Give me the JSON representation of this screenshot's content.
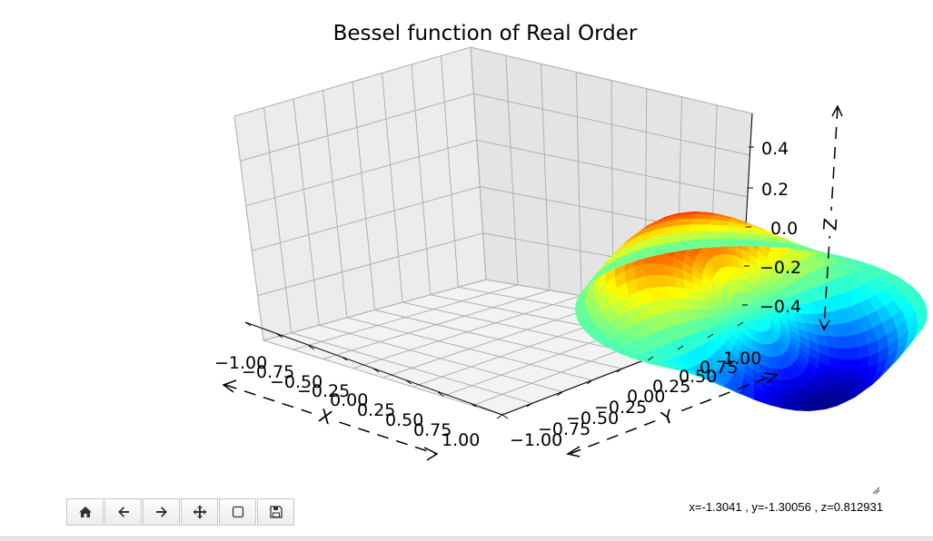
{
  "chart_data": {
    "type": "surface3d",
    "title": "Bessel function of Real Order",
    "xlabel": "X",
    "ylabel": "Y",
    "zlabel": "Z",
    "xlim": [
      -1.0,
      1.0
    ],
    "ylim": [
      -1.0,
      1.0
    ],
    "zlim": [
      -0.5,
      0.5
    ],
    "xticks": [
      "−1.00",
      "−0.75",
      "−0.50",
      "−0.25",
      "0.00",
      "0.25",
      "0.50",
      "0.75",
      "1.00"
    ],
    "yticks": [
      "−1.00",
      "−0.75",
      "−0.50",
      "−0.25",
      "0.00",
      "0.25",
      "0.50",
      "0.75",
      "1.00"
    ],
    "zticks": [
      "−0.4",
      "−0.2",
      "0.0",
      "0.2",
      "0.4"
    ],
    "zticks_values": [
      -0.4,
      -0.2,
      0.0,
      0.2,
      0.4
    ],
    "colormap": "jet",
    "grid": true,
    "surface": {
      "domain": "unit disk",
      "z_max": 0.5,
      "z_min": -0.4
    }
  },
  "toolbar": {
    "buttons": [
      {
        "name": "home-button",
        "icon": "home-icon"
      },
      {
        "name": "back-button",
        "icon": "arrow-left-icon"
      },
      {
        "name": "forward-button",
        "icon": "arrow-right-icon"
      },
      {
        "name": "pan-button",
        "icon": "move-icon"
      },
      {
        "name": "zoom-button",
        "icon": "square-icon"
      },
      {
        "name": "save-button",
        "icon": "floppy-disk-icon"
      }
    ]
  },
  "status": {
    "coords": "x=-1.3041 , y=-1.30056 , z=0.812931"
  }
}
